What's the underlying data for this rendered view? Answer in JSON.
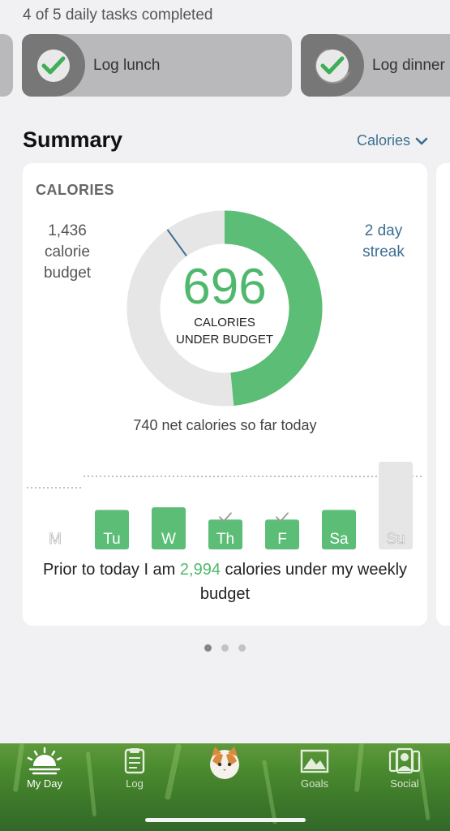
{
  "progress": {
    "text": "4 of 5 daily tasks completed",
    "done": 4,
    "total": 5
  },
  "tasks": [
    {
      "label": "Log lunch",
      "completed": true
    },
    {
      "label": "Log dinner",
      "completed": true
    }
  ],
  "summary": {
    "title": "Summary",
    "dropdown_label": "Calories",
    "card_heading": "CALORIES",
    "budget_lines": [
      "1,436",
      "calorie",
      "budget"
    ],
    "streak_lines": [
      "2 day",
      "streak"
    ],
    "big_number": "696",
    "caption_lines": [
      "CALORIES",
      "UNDER BUDGET"
    ],
    "net_text": "740 net calories so far today",
    "ring": {
      "remaining_fraction": 0.485,
      "consumed_marker_fraction": 0.9
    },
    "week_text_before": "Prior to today I am ",
    "week_text_highlight": "2,994",
    "week_text_after": " calories under my weekly budget",
    "days": [
      {
        "label": "M",
        "under_budget": false,
        "checked": false,
        "value": 0
      },
      {
        "label": "Tu",
        "under_budget": true,
        "checked": false,
        "value": 0.45
      },
      {
        "label": "W",
        "under_budget": true,
        "checked": false,
        "value": 0.48
      },
      {
        "label": "Th",
        "under_budget": true,
        "checked": true,
        "value": 0.34
      },
      {
        "label": "F",
        "under_budget": true,
        "checked": true,
        "value": 0.34
      },
      {
        "label": "Sa",
        "under_budget": true,
        "checked": false,
        "value": 0.45
      },
      {
        "label": "Su",
        "under_budget": false,
        "checked": false,
        "value": 1.0
      }
    ]
  },
  "pager": {
    "pages": 3,
    "active": 1
  },
  "tabbar": {
    "items": [
      {
        "label": "My Day",
        "icon": "sunrise-icon",
        "active": true
      },
      {
        "label": "Log",
        "icon": "clipboard-icon",
        "active": false
      },
      {
        "label": "",
        "icon": "cat-avatar-icon",
        "active": false
      },
      {
        "label": "Goals",
        "icon": "mountain-map-icon",
        "active": false
      },
      {
        "label": "Social",
        "icon": "people-icon",
        "active": false
      }
    ]
  },
  "colors": {
    "accent_green": "#4fb86c",
    "link_blue": "#3d6e92",
    "ring_gray": "#e6e6e6"
  }
}
